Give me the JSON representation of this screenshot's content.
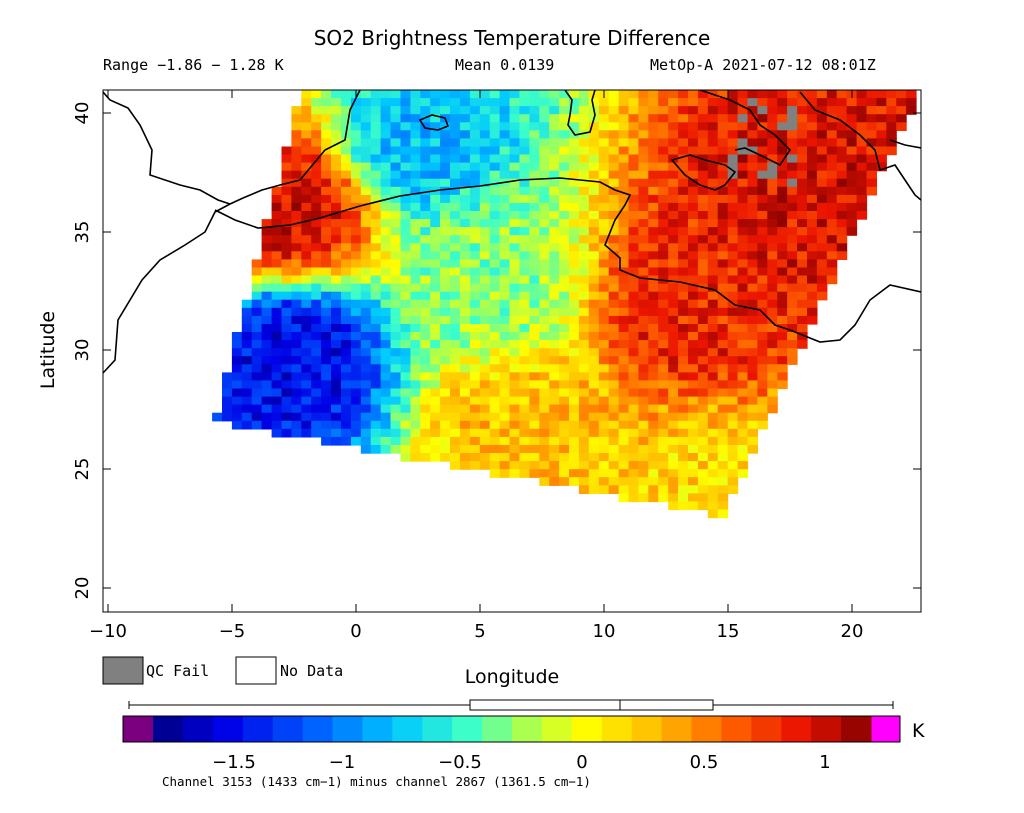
{
  "header": {
    "title": "SO2 Brightness Temperature Difference",
    "range_text": "Range −1.86 − 1.28 K",
    "mean_text": "Mean 0.0139",
    "satellite_text": "MetOp-A 2021-07-12 08:01Z"
  },
  "axes": {
    "xlabel": "Longitude",
    "ylabel": "Latitude",
    "x_ticks": [
      "−10",
      "−5",
      "0",
      "5",
      "10",
      "15",
      "20"
    ],
    "y_ticks": [
      "20",
      "25",
      "30",
      "35",
      "40"
    ]
  },
  "legend": {
    "qc_fail_label": "QC Fail",
    "no_data_label": "No Data",
    "qc_fail_color": "#808080",
    "no_data_color": "#ffffff"
  },
  "colorbar": {
    "unit": "K",
    "tick_labels": [
      "−1.5",
      "−1",
      "−0.5",
      "0",
      "0.5",
      "1"
    ],
    "under_color": "#7a0080",
    "over_color": "#ff00ff",
    "footnote": "Channel 3153 (1433 cm−1) minus channel 2867 (1361.5 cm−1)"
  },
  "chart_data": {
    "type": "heatmap",
    "title": "SO2 Brightness Temperature Difference",
    "xlabel": "Longitude",
    "ylabel": "Latitude",
    "xlim": [
      -10.5,
      22.5
    ],
    "ylim": [
      19,
      41
    ],
    "color_range": [
      -1.86,
      1.28
    ],
    "mean": 0.0139,
    "unit": "K",
    "colorbar_ticks": [
      -1.5,
      -1,
      -0.5,
      0,
      0.5,
      1
    ],
    "boxplot": {
      "min": -1.86,
      "q1": -0.45,
      "median": 0.15,
      "q3": 0.53,
      "max": 1.28
    },
    "swath_corners_lonlat": [
      [
        -2.5,
        41
      ],
      [
        14.8,
        41
      ],
      [
        22.5,
        41
      ],
      [
        14.5,
        23
      ],
      [
        -6,
        27
      ]
    ],
    "regions": [
      {
        "lon": -3,
        "lat": 36,
        "value": 1.0
      },
      {
        "lon": -3,
        "lat": 30,
        "value": -1.5
      },
      {
        "lon": 2,
        "lat": 39,
        "value": -0.8
      },
      {
        "lon": 5,
        "lat": 33,
        "value": -0.3
      },
      {
        "lon": 6,
        "lat": 27,
        "value": 0.3
      },
      {
        "lon": 13,
        "lat": 32,
        "value": 0.9
      },
      {
        "lon": 17,
        "lat": 37,
        "value": 1.0
      },
      {
        "lon": 14,
        "lat": 24,
        "value": 0.2
      }
    ]
  }
}
